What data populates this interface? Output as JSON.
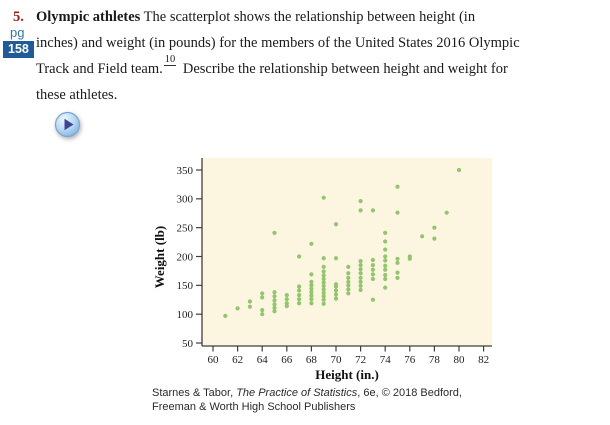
{
  "problem": {
    "number": "5.",
    "line1_bold": "Olympic athletes",
    "line1_rest": " The scatterplot shows the relationship between height (in",
    "line2": "inches) and weight (in pounds) for the members of the United States 2016 Olympic",
    "line3_pre": "Track and Field team.",
    "footnote": "10",
    "line3_post": " Describe the relationship between height and weight for",
    "line4": "these athletes."
  },
  "page_ref": {
    "label": "pg",
    "number": "158"
  },
  "chart_data": {
    "type": "scatter",
    "title": "",
    "xlabel": "Height (in.)",
    "ylabel": "Weight (lb)",
    "x_ticks": [
      60,
      62,
      64,
      66,
      68,
      70,
      72,
      74,
      76,
      78,
      80,
      82
    ],
    "y_ticks": [
      50,
      100,
      150,
      200,
      250,
      300,
      350
    ],
    "xlim": [
      59,
      83
    ],
    "ylim": [
      45,
      370
    ],
    "grid": "off",
    "background": "#fcf6e0",
    "point_color": "#92c66c",
    "axis_color": "#3f3f3f",
    "points": [
      [
        61,
        97
      ],
      [
        62,
        110
      ],
      [
        63,
        113
      ],
      [
        63,
        122
      ],
      [
        64,
        100
      ],
      [
        64,
        107
      ],
      [
        64,
        129
      ],
      [
        64,
        136
      ],
      [
        65,
        105
      ],
      [
        65,
        111
      ],
      [
        65,
        117
      ],
      [
        65,
        124
      ],
      [
        65,
        131
      ],
      [
        65,
        138
      ],
      [
        65,
        241
      ],
      [
        66,
        114
      ],
      [
        66,
        119
      ],
      [
        66,
        126
      ],
      [
        66,
        133
      ],
      [
        67,
        119
      ],
      [
        67,
        126
      ],
      [
        67,
        133
      ],
      [
        67,
        141
      ],
      [
        67,
        148
      ],
      [
        67,
        200
      ],
      [
        68,
        119
      ],
      [
        68,
        126
      ],
      [
        68,
        132
      ],
      [
        68,
        138
      ],
      [
        68,
        144
      ],
      [
        68,
        150
      ],
      [
        68,
        156
      ],
      [
        68,
        169
      ],
      [
        68,
        222
      ],
      [
        69,
        118
      ],
      [
        69,
        125
      ],
      [
        69,
        131
      ],
      [
        69,
        137
      ],
      [
        69,
        143
      ],
      [
        69,
        149
      ],
      [
        69,
        155
      ],
      [
        69,
        161
      ],
      [
        69,
        167
      ],
      [
        69,
        174
      ],
      [
        69,
        182
      ],
      [
        69,
        197
      ],
      [
        69,
        302
      ],
      [
        70,
        127
      ],
      [
        70,
        134
      ],
      [
        70,
        141
      ],
      [
        70,
        148
      ],
      [
        70,
        152
      ],
      [
        70,
        197
      ],
      [
        70,
        256
      ],
      [
        71,
        136
      ],
      [
        71,
        143
      ],
      [
        71,
        150
      ],
      [
        71,
        156
      ],
      [
        71,
        163
      ],
      [
        71,
        171
      ],
      [
        71,
        182
      ],
      [
        72,
        142
      ],
      [
        72,
        149
      ],
      [
        72,
        156
      ],
      [
        72,
        163
      ],
      [
        72,
        171
      ],
      [
        72,
        178
      ],
      [
        72,
        185
      ],
      [
        72,
        192
      ],
      [
        72,
        280
      ],
      [
        72,
        296
      ],
      [
        73,
        125
      ],
      [
        73,
        161
      ],
      [
        73,
        169
      ],
      [
        73,
        177
      ],
      [
        73,
        185
      ],
      [
        73,
        194
      ],
      [
        73,
        280
      ],
      [
        74,
        146
      ],
      [
        74,
        161
      ],
      [
        74,
        168
      ],
      [
        74,
        177
      ],
      [
        74,
        184
      ],
      [
        74,
        193
      ],
      [
        74,
        200
      ],
      [
        74,
        212
      ],
      [
        74,
        226
      ],
      [
        74,
        241
      ],
      [
        75,
        163
      ],
      [
        75,
        172
      ],
      [
        75,
        189
      ],
      [
        75,
        196
      ],
      [
        75,
        276
      ],
      [
        75,
        321
      ],
      [
        76,
        196
      ],
      [
        76,
        200
      ],
      [
        77,
        235
      ],
      [
        78,
        231
      ],
      [
        78,
        250
      ],
      [
        79,
        276
      ],
      [
        80,
        350
      ]
    ]
  },
  "attribution": {
    "prefix": "Starnes & Tabor, ",
    "italic": "The Practice of Statistics",
    "suffix": ", 6e, © 2018 Bedford, Freeman & Worth High School Publishers"
  }
}
